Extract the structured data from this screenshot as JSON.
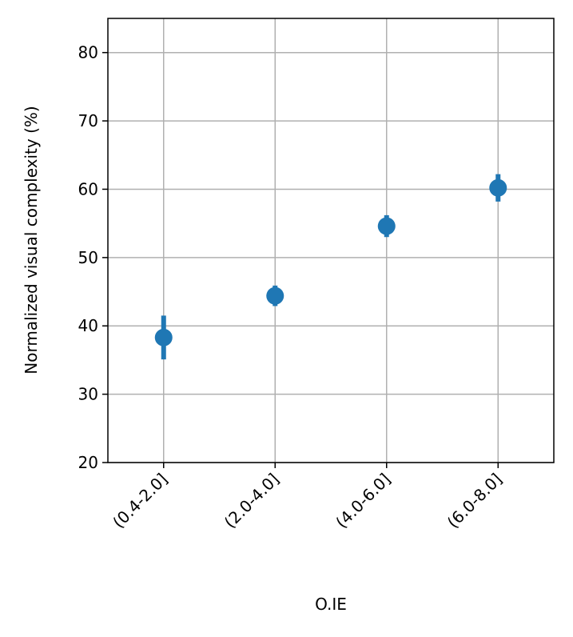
{
  "chart_data": {
    "type": "errorbar",
    "xlabel": "O.IE",
    "ylabel": "Normalized visual complexity (%)",
    "categories": [
      "(0.4-2.0]",
      "(2.0-4.0]",
      "(4.0-6.0]",
      "(6.0-8.0]"
    ],
    "values": [
      38.3,
      44.4,
      54.6,
      60.2
    ],
    "errors": [
      3.2,
      1.5,
      1.6,
      2.0
    ],
    "color": "#1f77b4",
    "ylim": [
      20,
      85
    ],
    "yticks": [
      20,
      30,
      40,
      50,
      60,
      70,
      80
    ],
    "grid": true
  }
}
